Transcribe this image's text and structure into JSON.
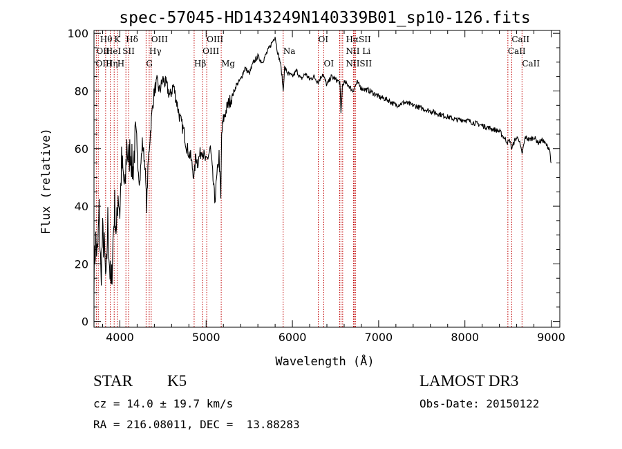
{
  "chart_data": {
    "type": "line",
    "title": "spec-57045-HD143249N140339B01_sp10-126.fits",
    "xlabel": "Wavelength (Å)",
    "ylabel": "Flux (relative)",
    "xlim": [
      3700,
      9100
    ],
    "ylim": [
      -2,
      101
    ],
    "x_ticks": [
      4000,
      5000,
      6000,
      7000,
      8000,
      9000
    ],
    "y_ticks": [
      0,
      20,
      40,
      60,
      80,
      100
    ],
    "grid": false,
    "series": [
      {
        "x": [
          3700,
          3720,
          3740,
          3760,
          3780,
          3800,
          3820,
          3840,
          3860,
          3880,
          3900,
          3920,
          3940,
          3960,
          3980,
          4000,
          4020,
          4040,
          4060,
          4080,
          4100,
          4120,
          4150,
          4180,
          4200,
          4230,
          4260,
          4290,
          4310,
          4330,
          4340,
          4360,
          4380,
          4400,
          4430,
          4460,
          4500,
          4540,
          4580,
          4620,
          4660,
          4700,
          4740,
          4780,
          4820,
          4850,
          4861,
          4880,
          4900,
          4950,
          5000,
          5050,
          5100,
          5150,
          5170,
          5180,
          5200,
          5250,
          5300,
          5350,
          5400,
          5450,
          5500,
          5550,
          5600,
          5650,
          5700,
          5750,
          5800,
          5820,
          5840,
          5860,
          5880,
          5893,
          5910,
          5950,
          6000,
          6050,
          6100,
          6150,
          6200,
          6250,
          6300,
          6350,
          6400,
          6450,
          6500,
          6550,
          6563,
          6580,
          6600,
          6650,
          6700,
          6750,
          6800,
          6900,
          7000,
          7100,
          7200,
          7300,
          7400,
          7500,
          7600,
          7700,
          7800,
          7900,
          8000,
          8100,
          8200,
          8300,
          8400,
          8498,
          8520,
          8542,
          8580,
          8620,
          8662,
          8700,
          8750,
          8800,
          8850,
          8900,
          8950,
          8980,
          9000
        ],
        "y": [
          18,
          28,
          22,
          38,
          15,
          30,
          25,
          12,
          35,
          20,
          10,
          28,
          40,
          30,
          45,
          38,
          55,
          50,
          45,
          62,
          55,
          60,
          52,
          64,
          58,
          48,
          62,
          55,
          40,
          56,
          60,
          68,
          75,
          80,
          83,
          80,
          84,
          82,
          78,
          82,
          76,
          70,
          66,
          60,
          57,
          52,
          50,
          58,
          55,
          60,
          55,
          60,
          42,
          58,
          42,
          65,
          70,
          75,
          78,
          82,
          84,
          88,
          86,
          90,
          92,
          90,
          93,
          96,
          99,
          95,
          92,
          90,
          85,
          80,
          88,
          86,
          85,
          87,
          84,
          86,
          84,
          85,
          83,
          86,
          82,
          85,
          84,
          83,
          72,
          82,
          83,
          82,
          80,
          83,
          81,
          80,
          78,
          77,
          75,
          76,
          75,
          74,
          73,
          72,
          71,
          70,
          70,
          69,
          68,
          67,
          66,
          62,
          63,
          60,
          63,
          64,
          58,
          64,
          63,
          64,
          62,
          63,
          61,
          60,
          55
        ]
      }
    ],
    "lines": [
      {
        "wave": 3727,
        "labels": [
          "OII"
        ]
      },
      {
        "wave": 3750,
        "labels": [
          "OIII"
        ]
      },
      {
        "wave": 3835,
        "labels": [
          "Hθ",
          "HeI"
        ]
      },
      {
        "wave": 3889,
        "labels": [
          "HeI"
        ]
      },
      {
        "wave": 3934,
        "labels": [
          "K"
        ]
      },
      {
        "wave": 3970,
        "labels": [
          "H"
        ]
      },
      {
        "wave": 4070,
        "labels": [
          "SII"
        ]
      },
      {
        "wave": 4102,
        "labels": [
          "Hδ"
        ]
      },
      {
        "wave": 4304,
        "labels": [
          "G"
        ]
      },
      {
        "wave": 4340,
        "labels": [
          "Hγ"
        ]
      },
      {
        "wave": 4363,
        "labels": [
          "OIII"
        ]
      },
      {
        "wave": 4861,
        "labels": [
          "Hβ"
        ]
      },
      {
        "wave": 4959,
        "labels": [
          "OIII"
        ]
      },
      {
        "wave": 5007,
        "labels": [
          "OIII"
        ]
      },
      {
        "wave": 5175,
        "labels": [
          "Mg"
        ]
      },
      {
        "wave": 5893,
        "labels": [
          "Na"
        ]
      },
      {
        "wave": 6300,
        "labels": [
          "OI"
        ]
      },
      {
        "wave": 6364,
        "labels": [
          "OI"
        ]
      },
      {
        "wave": 6548,
        "labels": [
          "NII"
        ]
      },
      {
        "wave": 6563,
        "labels": [
          "Hα"
        ]
      },
      {
        "wave": 6583,
        "labels": [
          "NII"
        ]
      },
      {
        "wave": 6708,
        "labels": [
          "Li"
        ]
      },
      {
        "wave": 6716,
        "labels": [
          "SII"
        ]
      },
      {
        "wave": 6731,
        "labels": [
          "SII"
        ]
      },
      {
        "wave": 8498,
        "labels": [
          "CaII"
        ]
      },
      {
        "wave": 8542,
        "labels": [
          "CaII"
        ]
      },
      {
        "wave": 8662,
        "labels": [
          "CaII"
        ]
      }
    ],
    "annotations": [
      {
        "text": "Hθ",
        "wave": 3770,
        "row": 0
      },
      {
        "text": "OII",
        "wave": 3727,
        "row": 1
      },
      {
        "text": "OIII",
        "wave": 3720,
        "row": 2
      },
      {
        "text": "K",
        "wave": 3934,
        "row": 0
      },
      {
        "text": "HeI",
        "wave": 3835,
        "row": 1
      },
      {
        "text": "Hη",
        "wave": 3835,
        "row": 2
      },
      {
        "text": "Hδ",
        "wave": 4070,
        "row": 0
      },
      {
        "text": "SII",
        "wave": 4030,
        "row": 1
      },
      {
        "text": "H",
        "wave": 3970,
        "row": 2
      },
      {
        "text": "OIII",
        "wave": 4363,
        "row": 0
      },
      {
        "text": "Hγ",
        "wave": 4340,
        "row": 1
      },
      {
        "text": "G",
        "wave": 4304,
        "row": 2
      },
      {
        "text": "OIII",
        "wave": 5007,
        "row": 0
      },
      {
        "text": "OIII",
        "wave": 4959,
        "row": 1
      },
      {
        "text": "Hβ",
        "wave": 4861,
        "row": 2
      },
      {
        "text": "Mg",
        "wave": 5175,
        "row": 2
      },
      {
        "text": "Na",
        "wave": 5893,
        "row": 1
      },
      {
        "text": "OI",
        "wave": 6300,
        "row": 0
      },
      {
        "text": "OI",
        "wave": 6364,
        "row": 2
      },
      {
        "text": "HαSII",
        "wave": 6620,
        "row": 0
      },
      {
        "text": "NII Li",
        "wave": 6620,
        "row": 1
      },
      {
        "text": "NIISII",
        "wave": 6620,
        "row": 2
      },
      {
        "text": "CaII",
        "wave": 8542,
        "row": 0
      },
      {
        "text": "CaII",
        "wave": 8498,
        "row": 1
      },
      {
        "text": "CaII",
        "wave": 8662,
        "row": 2
      }
    ]
  },
  "info": {
    "class": "STAR",
    "subclass": "K5",
    "survey": "LAMOST DR3",
    "cz": "cz = 14.0 ± 19.7 km/s",
    "obs_date": "Obs-Date: 20150122",
    "coords": "RA = 216.08011, DEC =  13.88283"
  }
}
